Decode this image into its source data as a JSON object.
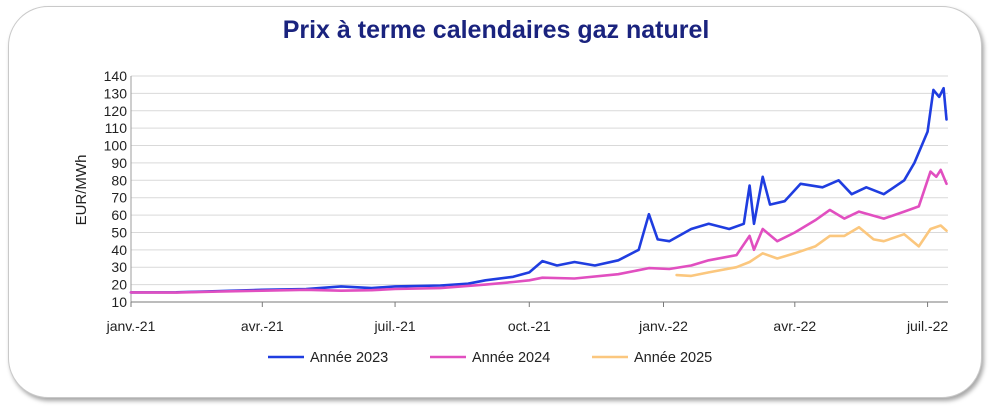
{
  "chart_data": {
    "type": "line",
    "title": "Prix à terme calendaires gaz naturel",
    "ylabel": "EUR/MWh",
    "xlabel": "",
    "ylim": [
      10,
      140
    ],
    "yticks": [
      10,
      20,
      30,
      40,
      50,
      60,
      70,
      80,
      90,
      100,
      110,
      120,
      130,
      140
    ],
    "xlim": [
      "2021-01-01",
      "2022-07-15"
    ],
    "xticks": [
      {
        "date": "2021-01-01",
        "label": "janv.-21"
      },
      {
        "date": "2021-04-01",
        "label": "avr.-21"
      },
      {
        "date": "2021-07-01",
        "label": "juil.-21"
      },
      {
        "date": "2021-10-01",
        "label": "oct.-21"
      },
      {
        "date": "2022-01-01",
        "label": "janv.-22"
      },
      {
        "date": "2022-04-01",
        "label": "avr.-22"
      },
      {
        "date": "2022-07-01",
        "label": "juil.-22"
      }
    ],
    "grid": true,
    "legend_position": "bottom",
    "series": [
      {
        "name": "Année 2023",
        "color": "#1f3de0",
        "points": [
          [
            "2021-01-01",
            15.5
          ],
          [
            "2021-02-01",
            15.6
          ],
          [
            "2021-03-01",
            16.2
          ],
          [
            "2021-04-01",
            17.0
          ],
          [
            "2021-05-01",
            17.4
          ],
          [
            "2021-05-25",
            19.0
          ],
          [
            "2021-06-15",
            18.0
          ],
          [
            "2021-07-01",
            19.0
          ],
          [
            "2021-08-01",
            19.5
          ],
          [
            "2021-08-20",
            20.5
          ],
          [
            "2021-09-01",
            22.5
          ],
          [
            "2021-09-20",
            24.5
          ],
          [
            "2021-10-01",
            27.0
          ],
          [
            "2021-10-10",
            33.5
          ],
          [
            "2021-10-20",
            31.0
          ],
          [
            "2021-11-01",
            33.0
          ],
          [
            "2021-11-15",
            31.0
          ],
          [
            "2021-12-01",
            34.0
          ],
          [
            "2021-12-15",
            40.0
          ],
          [
            "2021-12-22",
            60.5
          ],
          [
            "2021-12-28",
            46.0
          ],
          [
            "2022-01-05",
            45.0
          ],
          [
            "2022-01-20",
            52.0
          ],
          [
            "2022-02-01",
            55.0
          ],
          [
            "2022-02-15",
            52.0
          ],
          [
            "2022-02-25",
            55.0
          ],
          [
            "2022-03-01",
            77.0
          ],
          [
            "2022-03-04",
            55.0
          ],
          [
            "2022-03-10",
            82.0
          ],
          [
            "2022-03-15",
            66.0
          ],
          [
            "2022-03-25",
            68.0
          ],
          [
            "2022-04-05",
            78.0
          ],
          [
            "2022-04-20",
            76.0
          ],
          [
            "2022-05-01",
            80.0
          ],
          [
            "2022-05-10",
            72.0
          ],
          [
            "2022-05-20",
            76.0
          ],
          [
            "2022-06-01",
            72.0
          ],
          [
            "2022-06-15",
            80.0
          ],
          [
            "2022-06-22",
            90.0
          ],
          [
            "2022-07-01",
            108.0
          ],
          [
            "2022-07-05",
            132.0
          ],
          [
            "2022-07-09",
            128.0
          ],
          [
            "2022-07-12",
            133.0
          ],
          [
            "2022-07-14",
            115.0
          ]
        ]
      },
      {
        "name": "Année 2024",
        "color": "#e14fc0",
        "points": [
          [
            "2021-01-01",
            15.5
          ],
          [
            "2021-02-01",
            15.4
          ],
          [
            "2021-03-01",
            16.0
          ],
          [
            "2021-04-01",
            16.5
          ],
          [
            "2021-05-01",
            17.0
          ],
          [
            "2021-05-25",
            16.5
          ],
          [
            "2021-06-15",
            16.8
          ],
          [
            "2021-07-01",
            17.5
          ],
          [
            "2021-08-01",
            18.0
          ],
          [
            "2021-09-01",
            20.0
          ],
          [
            "2021-09-20",
            21.5
          ],
          [
            "2021-10-01",
            22.5
          ],
          [
            "2021-10-10",
            24.0
          ],
          [
            "2021-11-01",
            23.5
          ],
          [
            "2021-12-01",
            26.0
          ],
          [
            "2021-12-22",
            29.5
          ],
          [
            "2022-01-05",
            29.0
          ],
          [
            "2022-01-20",
            31.0
          ],
          [
            "2022-02-01",
            34.0
          ],
          [
            "2022-02-20",
            37.0
          ],
          [
            "2022-03-01",
            48.0
          ],
          [
            "2022-03-04",
            40.0
          ],
          [
            "2022-03-10",
            52.0
          ],
          [
            "2022-03-20",
            45.0
          ],
          [
            "2022-04-01",
            50.0
          ],
          [
            "2022-04-15",
            57.0
          ],
          [
            "2022-04-25",
            63.0
          ],
          [
            "2022-05-05",
            58.0
          ],
          [
            "2022-05-15",
            62.0
          ],
          [
            "2022-06-01",
            58.0
          ],
          [
            "2022-06-15",
            62.0
          ],
          [
            "2022-06-25",
            65.0
          ],
          [
            "2022-07-03",
            85.0
          ],
          [
            "2022-07-07",
            82.0
          ],
          [
            "2022-07-10",
            86.0
          ],
          [
            "2022-07-14",
            78.0
          ]
        ]
      },
      {
        "name": "Année 2025",
        "color": "#fbc77e",
        "points": [
          [
            "2022-01-10",
            25.5
          ],
          [
            "2022-01-20",
            25.0
          ],
          [
            "2022-02-01",
            27.0
          ],
          [
            "2022-02-20",
            30.0
          ],
          [
            "2022-03-01",
            33.0
          ],
          [
            "2022-03-10",
            38.0
          ],
          [
            "2022-03-20",
            35.0
          ],
          [
            "2022-04-01",
            38.0
          ],
          [
            "2022-04-15",
            42.0
          ],
          [
            "2022-04-25",
            48.0
          ],
          [
            "2022-05-05",
            48.0
          ],
          [
            "2022-05-15",
            53.0
          ],
          [
            "2022-05-25",
            46.0
          ],
          [
            "2022-06-01",
            45.0
          ],
          [
            "2022-06-15",
            49.0
          ],
          [
            "2022-06-25",
            42.0
          ],
          [
            "2022-07-03",
            52.0
          ],
          [
            "2022-07-10",
            54.0
          ],
          [
            "2022-07-14",
            51.0
          ]
        ]
      }
    ]
  }
}
